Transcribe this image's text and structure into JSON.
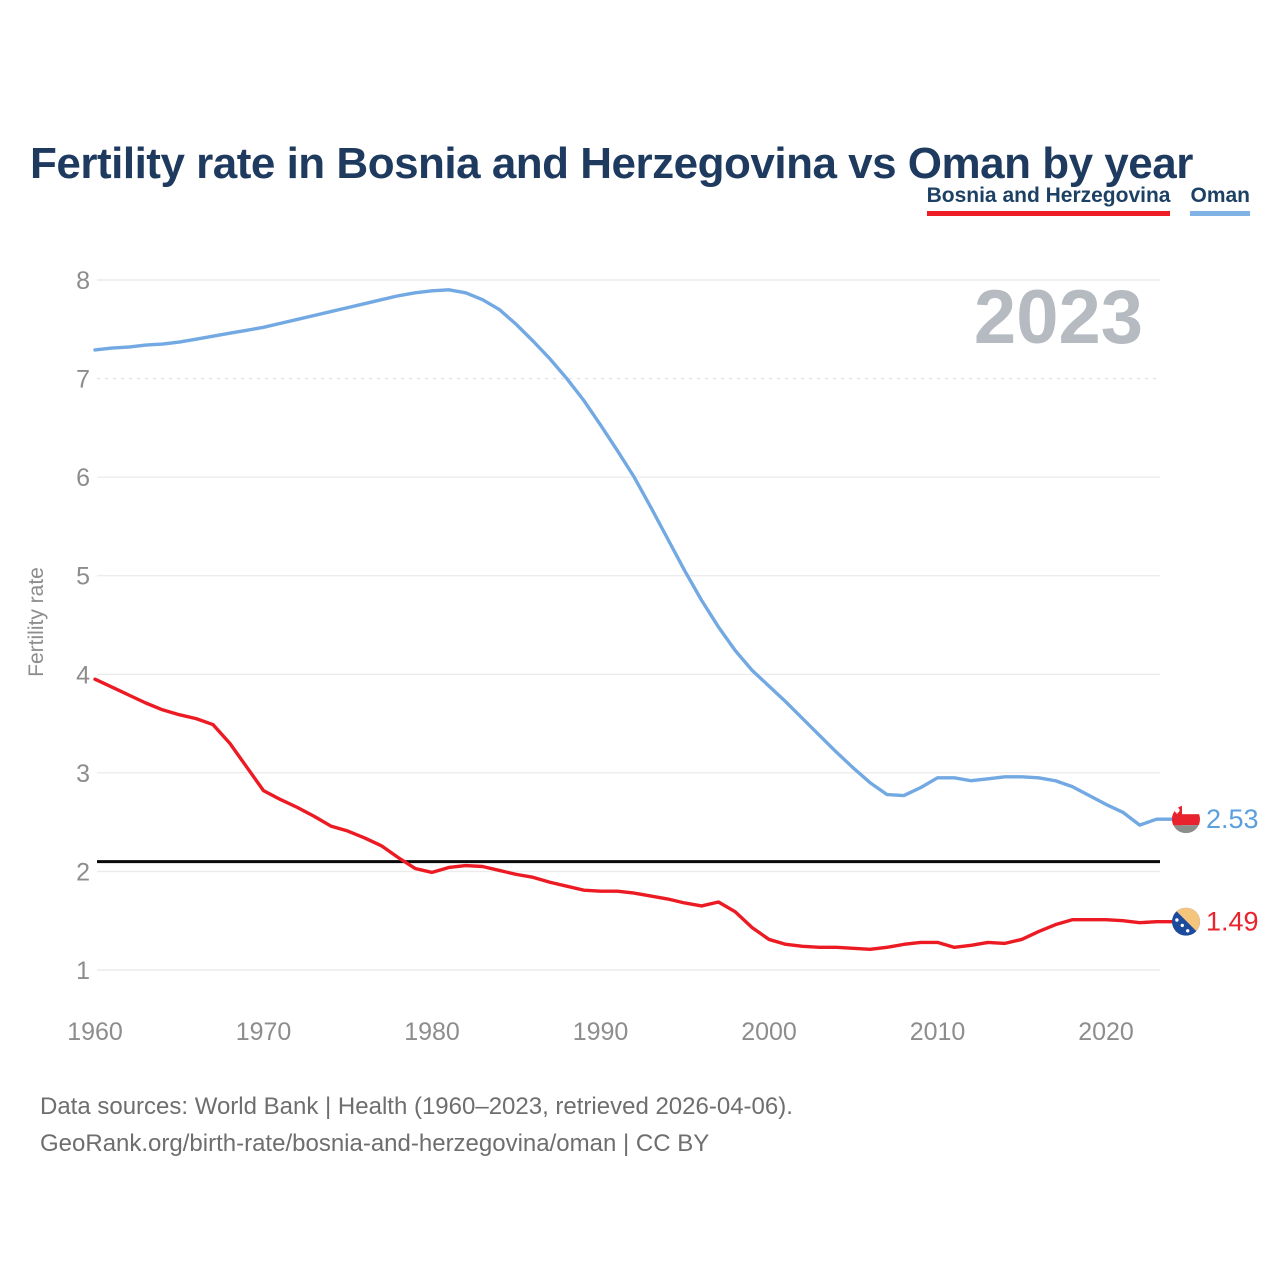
{
  "title": "Fertility rate in Bosnia and Herzegovina vs Oman by year",
  "watermark": "2023",
  "legend": {
    "items": [
      {
        "label": "Bosnia and Herzegovina",
        "underline_color": "#ee1c25"
      },
      {
        "label": "Oman",
        "underline_color": "#7fb2e5"
      }
    ]
  },
  "y_axis": {
    "label": "Fertility rate",
    "ticks": [
      "8",
      "7",
      "6",
      "5",
      "4",
      "3",
      "2",
      "1"
    ]
  },
  "x_axis": {
    "ticks": [
      "1960",
      "1970",
      "1980",
      "1990",
      "2000",
      "2010",
      "2020"
    ]
  },
  "footer": {
    "line1": "Data sources: World Bank | Health (1960–2023, retrieved 2026-04-06).",
    "line2": "GeoRank.org/birth-rate/bosnia-and-herzegovina/oman | CC BY"
  },
  "colors": {
    "title": "#1e3a5f",
    "axis_text": "#8d8d8d",
    "gridline": "#ececec",
    "dashed_gridline": "#e3e3e3",
    "watermark": "#b6bac1",
    "footer_text": "#6e6e6e",
    "reference_line": "#0a0a0a"
  },
  "icons": {
    "oman_flag": {
      "white": "#ffffff",
      "red": "#e8232d",
      "bottom": "#8b8f8b"
    },
    "bosnia_flag": {
      "blue": "#1c4a9c",
      "yellow": "#f6c57d",
      "star": "#ffffff"
    }
  },
  "chart_data": {
    "type": "line",
    "title": "Fertility rate in Bosnia and Herzegovina vs Oman by year",
    "xlabel": "",
    "ylabel": "Fertility rate",
    "xlim": [
      1960,
      2023
    ],
    "ylim": [
      1,
      8
    ],
    "grid": true,
    "legend_position": "top-right",
    "x": [
      1960,
      1961,
      1962,
      1963,
      1964,
      1965,
      1966,
      1967,
      1968,
      1969,
      1970,
      1971,
      1972,
      1973,
      1974,
      1975,
      1976,
      1977,
      1978,
      1979,
      1980,
      1981,
      1982,
      1983,
      1984,
      1985,
      1986,
      1987,
      1988,
      1989,
      1990,
      1991,
      1992,
      1993,
      1994,
      1995,
      1996,
      1997,
      1998,
      1999,
      2000,
      2001,
      2002,
      2003,
      2004,
      2005,
      2006,
      2007,
      2008,
      2009,
      2010,
      2011,
      2012,
      2013,
      2014,
      2015,
      2016,
      2017,
      2018,
      2019,
      2020,
      2021,
      2022,
      2023
    ],
    "series": [
      {
        "name": "Bosnia and Herzegovina",
        "color": "#ec1b23",
        "end_label": "1.49",
        "end_label_color": "#e9242c",
        "flag": "bosnia-and-herzegovina-flag-icon",
        "values": [
          3.95,
          3.87,
          3.79,
          3.71,
          3.64,
          3.59,
          3.55,
          3.49,
          3.3,
          3.06,
          2.82,
          2.73,
          2.65,
          2.56,
          2.46,
          2.41,
          2.34,
          2.26,
          2.14,
          2.03,
          1.99,
          2.04,
          2.06,
          2.05,
          2.01,
          1.97,
          1.94,
          1.89,
          1.85,
          1.81,
          1.8,
          1.8,
          1.78,
          1.75,
          1.72,
          1.68,
          1.65,
          1.69,
          1.59,
          1.43,
          1.31,
          1.26,
          1.24,
          1.23,
          1.23,
          1.22,
          1.21,
          1.23,
          1.26,
          1.28,
          1.28,
          1.23,
          1.25,
          1.28,
          1.27,
          1.31,
          1.39,
          1.46,
          1.51,
          1.51,
          1.51,
          1.5,
          1.48,
          1.49
        ]
      },
      {
        "name": "Oman",
        "color": "#73a9e3",
        "end_label": "2.53",
        "end_label_color": "#5b9fdd",
        "flag": "oman-flag-icon",
        "values": [
          7.29,
          7.31,
          7.32,
          7.34,
          7.35,
          7.37,
          7.4,
          7.43,
          7.46,
          7.49,
          7.52,
          7.56,
          7.6,
          7.64,
          7.68,
          7.72,
          7.76,
          7.8,
          7.84,
          7.87,
          7.89,
          7.9,
          7.87,
          7.8,
          7.7,
          7.55,
          7.38,
          7.2,
          7.0,
          6.78,
          6.53,
          6.27,
          6.0,
          5.69,
          5.37,
          5.05,
          4.75,
          4.48,
          4.24,
          4.04,
          3.88,
          3.72,
          3.55,
          3.38,
          3.21,
          3.05,
          2.9,
          2.78,
          2.77,
          2.85,
          2.95,
          2.95,
          2.92,
          2.94,
          2.96,
          2.96,
          2.95,
          2.92,
          2.86,
          2.77,
          2.68,
          2.6,
          2.47,
          2.53
        ]
      }
    ],
    "reference_line": {
      "value": 2.1,
      "color": "#0a0a0a"
    }
  }
}
